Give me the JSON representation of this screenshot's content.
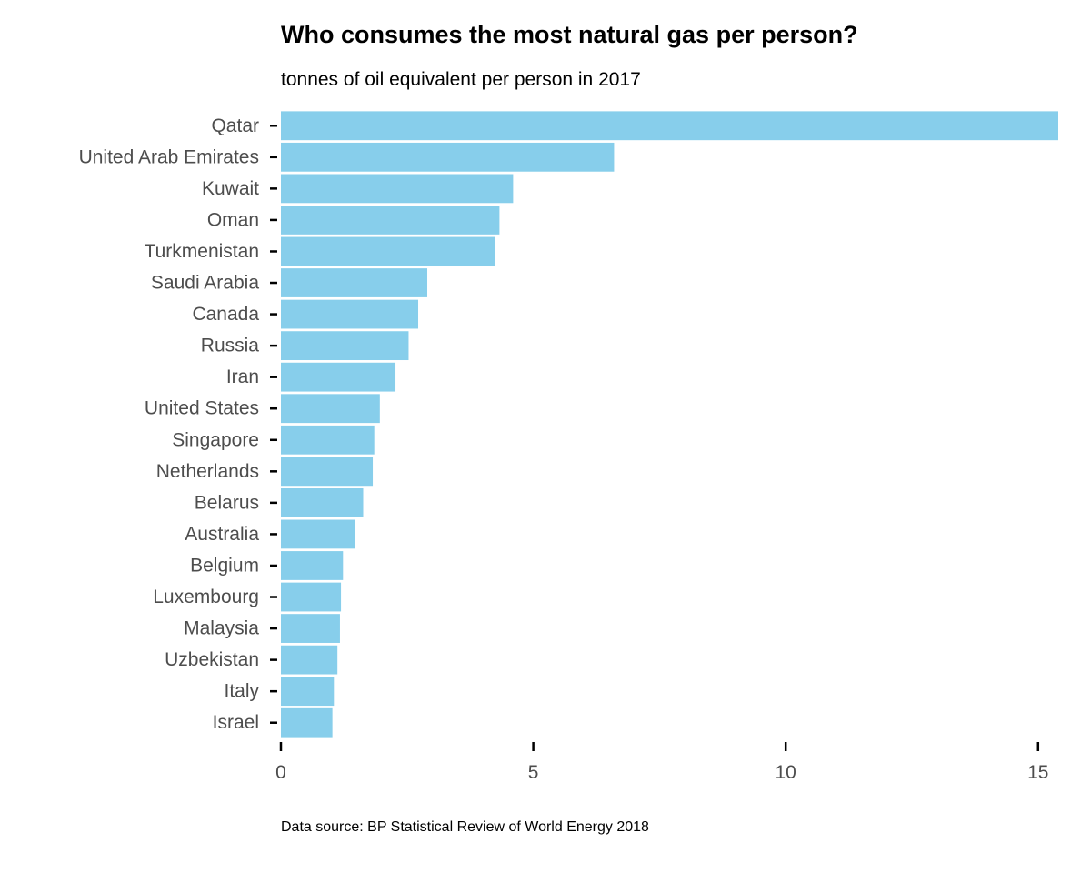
{
  "chart_data": {
    "type": "bar",
    "orientation": "horizontal",
    "title": "Who consumes the most natural gas per person?",
    "subtitle": "tonnes of oil equivalent per person in 2017",
    "caption": "Data source: BP Statistical Review of World Energy 2018",
    "categories": [
      "Qatar",
      "United Arab Emirates",
      "Kuwait",
      "Oman",
      "Turkmenistan",
      "Saudi Arabia",
      "Canada",
      "Russia",
      "Iran",
      "United States",
      "Singapore",
      "Netherlands",
      "Belarus",
      "Australia",
      "Belgium",
      "Luxembourg",
      "Malaysia",
      "Uzbekistan",
      "Italy",
      "Israel"
    ],
    "values": [
      15.4,
      6.6,
      4.6,
      4.33,
      4.25,
      2.9,
      2.72,
      2.53,
      2.27,
      1.96,
      1.85,
      1.82,
      1.63,
      1.47,
      1.23,
      1.19,
      1.17,
      1.12,
      1.05,
      1.02
    ],
    "xlim": [
      0,
      15.4
    ],
    "xticks": [
      0,
      5,
      10,
      15
    ],
    "xtick_labels": [
      "0",
      "5",
      "10",
      "15"
    ],
    "xlabel": "",
    "ylabel": "",
    "grid": false,
    "legend": "none",
    "bar_color": "#87ceeb"
  }
}
